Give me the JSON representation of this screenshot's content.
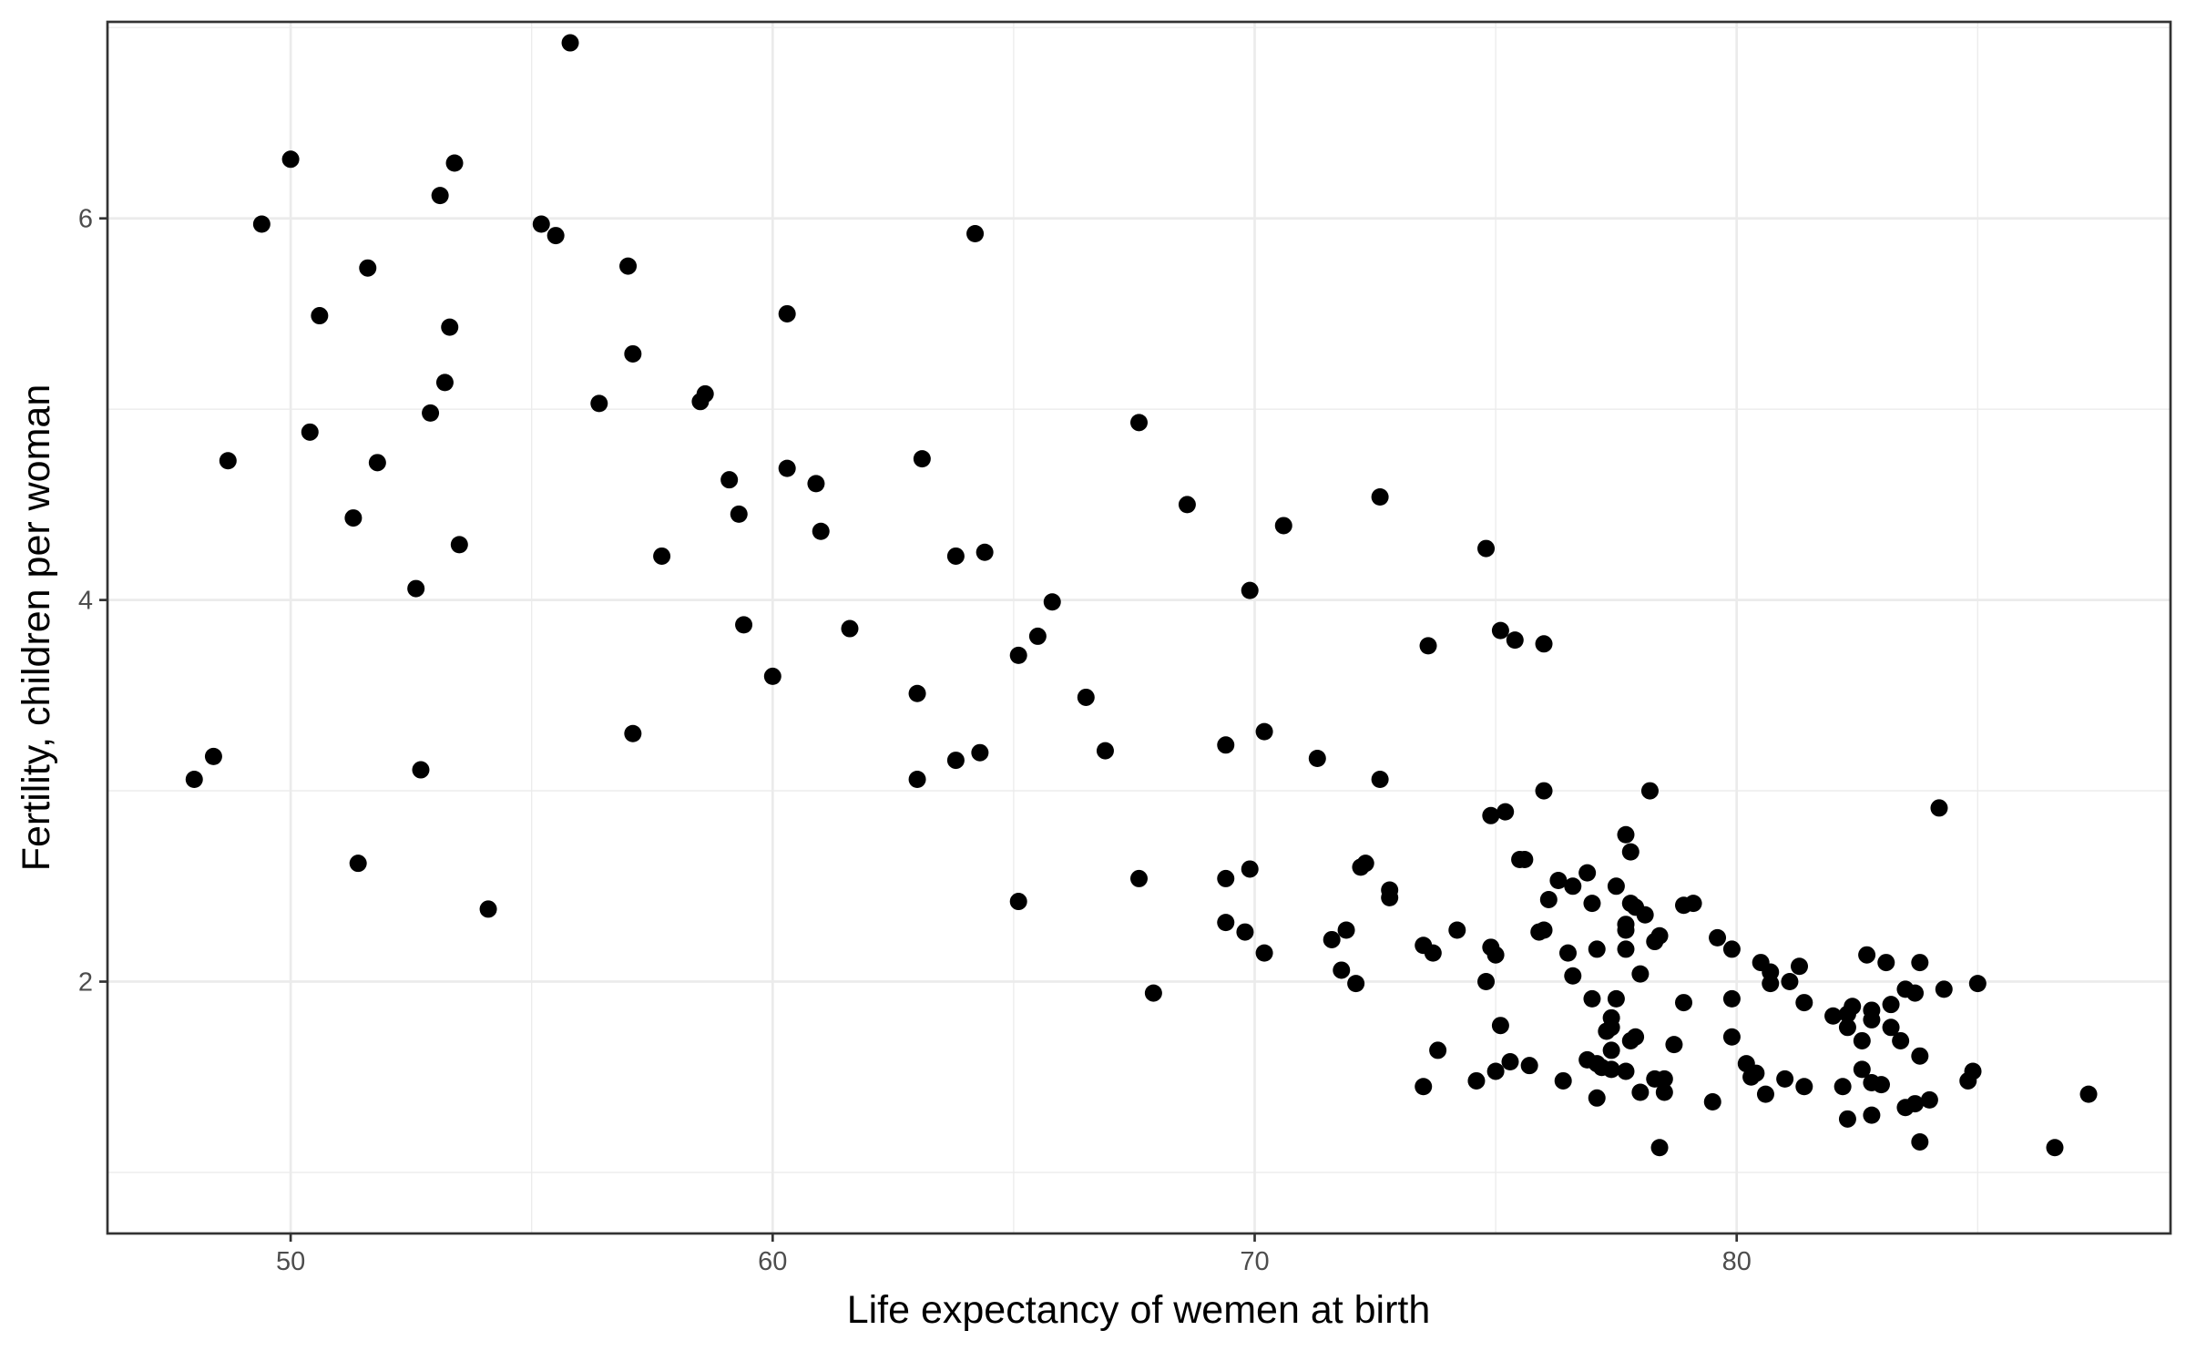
{
  "chart_data": {
    "type": "scatter",
    "title": "",
    "xlabel": "Life expectancy of wemen at birth",
    "ylabel": "Fertility, children per woman",
    "xlim": [
      46.2,
      89.0
    ],
    "ylim": [
      0.68,
      7.03
    ],
    "x_ticks": [
      50,
      60,
      70,
      80
    ],
    "y_ticks": [
      2,
      4,
      6
    ],
    "x_minor_ticks": [
      55,
      65,
      75,
      85
    ],
    "y_minor_ticks": [
      1,
      3,
      5,
      7
    ],
    "grid": true,
    "legend": "none",
    "point_color": "#000000",
    "points": [
      [
        55.8,
        6.92
      ],
      [
        50.0,
        6.31
      ],
      [
        53.4,
        6.29
      ],
      [
        53.1,
        6.12
      ],
      [
        49.4,
        5.97
      ],
      [
        55.2,
        5.97
      ],
      [
        55.5,
        5.91
      ],
      [
        64.2,
        5.92
      ],
      [
        51.6,
        5.74
      ],
      [
        57.0,
        5.75
      ],
      [
        50.6,
        5.49
      ],
      [
        60.3,
        5.5
      ],
      [
        53.3,
        5.43
      ],
      [
        57.1,
        5.29
      ],
      [
        53.2,
        5.14
      ],
      [
        58.6,
        5.08
      ],
      [
        58.5,
        5.04
      ],
      [
        56.4,
        5.03
      ],
      [
        52.9,
        4.98
      ],
      [
        67.6,
        4.93
      ],
      [
        50.4,
        4.88
      ],
      [
        48.7,
        4.73
      ],
      [
        51.8,
        4.72
      ],
      [
        63.1,
        4.74
      ],
      [
        60.3,
        4.69
      ],
      [
        59.1,
        4.63
      ],
      [
        60.9,
        4.61
      ],
      [
        72.6,
        4.54
      ],
      [
        68.6,
        4.5
      ],
      [
        51.3,
        4.43
      ],
      [
        59.3,
        4.45
      ],
      [
        70.6,
        4.39
      ],
      [
        61.0,
        4.36
      ],
      [
        53.5,
        4.29
      ],
      [
        74.8,
        4.27
      ],
      [
        57.7,
        4.23
      ],
      [
        63.8,
        4.23
      ],
      [
        64.4,
        4.25
      ],
      [
        52.6,
        4.06
      ],
      [
        69.9,
        4.05
      ],
      [
        65.8,
        3.99
      ],
      [
        59.4,
        3.87
      ],
      [
        61.6,
        3.85
      ],
      [
        75.1,
        3.84
      ],
      [
        75.4,
        3.79
      ],
      [
        76.0,
        3.77
      ],
      [
        65.5,
        3.81
      ],
      [
        73.6,
        3.76
      ],
      [
        65.1,
        3.71
      ],
      [
        60.0,
        3.6
      ],
      [
        63.0,
        3.51
      ],
      [
        66.5,
        3.49
      ],
      [
        57.1,
        3.3
      ],
      [
        70.2,
        3.31
      ],
      [
        69.4,
        3.24
      ],
      [
        66.9,
        3.21
      ],
      [
        64.3,
        3.2
      ],
      [
        48.4,
        3.18
      ],
      [
        63.8,
        3.16
      ],
      [
        71.3,
        3.17
      ],
      [
        52.7,
        3.11
      ],
      [
        48.0,
        3.06
      ],
      [
        63.0,
        3.06
      ],
      [
        72.6,
        3.06
      ],
      [
        76.0,
        3.0
      ],
      [
        78.2,
        3.0
      ],
      [
        84.2,
        2.91
      ],
      [
        75.2,
        2.89
      ],
      [
        74.9,
        2.87
      ],
      [
        77.7,
        2.77
      ],
      [
        77.8,
        2.68
      ],
      [
        75.6,
        2.64
      ],
      [
        75.5,
        2.64
      ],
      [
        51.4,
        2.62
      ],
      [
        72.3,
        2.62
      ],
      [
        72.2,
        2.6
      ],
      [
        69.9,
        2.59
      ],
      [
        76.9,
        2.57
      ],
      [
        76.3,
        2.53
      ],
      [
        67.6,
        2.54
      ],
      [
        69.4,
        2.54
      ],
      [
        76.6,
        2.5
      ],
      [
        77.5,
        2.5
      ],
      [
        72.8,
        2.48
      ],
      [
        72.8,
        2.44
      ],
      [
        76.1,
        2.43
      ],
      [
        65.1,
        2.42
      ],
      [
        77.0,
        2.41
      ],
      [
        77.8,
        2.41
      ],
      [
        79.1,
        2.41
      ],
      [
        78.9,
        2.4
      ],
      [
        77.9,
        2.39
      ],
      [
        54.1,
        2.38
      ],
      [
        78.1,
        2.35
      ],
      [
        77.7,
        2.3
      ],
      [
        77.7,
        2.27
      ],
      [
        69.4,
        2.31
      ],
      [
        71.9,
        2.27
      ],
      [
        69.8,
        2.26
      ],
      [
        74.2,
        2.27
      ],
      [
        76.0,
        2.27
      ],
      [
        75.9,
        2.26
      ],
      [
        71.6,
        2.22
      ],
      [
        79.6,
        2.23
      ],
      [
        78.4,
        2.24
      ],
      [
        78.3,
        2.21
      ],
      [
        73.5,
        2.19
      ],
      [
        74.9,
        2.18
      ],
      [
        79.9,
        2.17
      ],
      [
        77.7,
        2.17
      ],
      [
        77.1,
        2.17
      ],
      [
        70.2,
        2.15
      ],
      [
        73.7,
        2.15
      ],
      [
        75.0,
        2.14
      ],
      [
        76.5,
        2.15
      ],
      [
        82.7,
        2.14
      ],
      [
        83.1,
        2.1
      ],
      [
        83.8,
        2.1
      ],
      [
        80.5,
        2.1
      ],
      [
        81.3,
        2.08
      ],
      [
        71.8,
        2.06
      ],
      [
        80.7,
        2.05
      ],
      [
        78.0,
        2.04
      ],
      [
        76.6,
        2.03
      ],
      [
        74.8,
        2.0
      ],
      [
        72.1,
        1.99
      ],
      [
        80.7,
        1.99
      ],
      [
        81.1,
        2.0
      ],
      [
        85.0,
        1.99
      ],
      [
        84.3,
        1.96
      ],
      [
        83.5,
        1.96
      ],
      [
        83.7,
        1.94
      ],
      [
        67.9,
        1.94
      ],
      [
        77.0,
        1.91
      ],
      [
        77.5,
        1.91
      ],
      [
        79.9,
        1.91
      ],
      [
        81.4,
        1.89
      ],
      [
        78.9,
        1.89
      ],
      [
        83.2,
        1.88
      ],
      [
        82.4,
        1.87
      ],
      [
        82.8,
        1.85
      ],
      [
        82.0,
        1.82
      ],
      [
        82.3,
        1.83
      ],
      [
        77.4,
        1.81
      ],
      [
        82.8,
        1.8
      ],
      [
        75.1,
        1.77
      ],
      [
        77.4,
        1.76
      ],
      [
        82.3,
        1.76
      ],
      [
        83.2,
        1.76
      ],
      [
        77.3,
        1.74
      ],
      [
        77.9,
        1.71
      ],
      [
        79.9,
        1.71
      ],
      [
        77.8,
        1.69
      ],
      [
        82.6,
        1.69
      ],
      [
        83.4,
        1.69
      ],
      [
        78.7,
        1.67
      ],
      [
        77.4,
        1.64
      ],
      [
        73.8,
        1.64
      ],
      [
        83.8,
        1.61
      ],
      [
        76.9,
        1.59
      ],
      [
        75.3,
        1.58
      ],
      [
        77.1,
        1.57
      ],
      [
        80.2,
        1.57
      ],
      [
        75.7,
        1.56
      ],
      [
        77.2,
        1.55
      ],
      [
        77.4,
        1.54
      ],
      [
        82.6,
        1.54
      ],
      [
        77.7,
        1.53
      ],
      [
        75.0,
        1.53
      ],
      [
        84.9,
        1.53
      ],
      [
        80.4,
        1.52
      ],
      [
        80.3,
        1.5
      ],
      [
        81.0,
        1.49
      ],
      [
        78.3,
        1.49
      ],
      [
        78.5,
        1.49
      ],
      [
        84.8,
        1.48
      ],
      [
        74.6,
        1.48
      ],
      [
        76.4,
        1.48
      ],
      [
        82.8,
        1.47
      ],
      [
        83.0,
        1.46
      ],
      [
        82.2,
        1.45
      ],
      [
        73.5,
        1.45
      ],
      [
        81.4,
        1.45
      ],
      [
        78.5,
        1.42
      ],
      [
        78.0,
        1.42
      ],
      [
        80.6,
        1.41
      ],
      [
        87.3,
        1.41
      ],
      [
        77.1,
        1.39
      ],
      [
        84.0,
        1.38
      ],
      [
        79.5,
        1.37
      ],
      [
        83.7,
        1.36
      ],
      [
        83.5,
        1.34
      ],
      [
        82.8,
        1.3
      ],
      [
        82.3,
        1.28
      ],
      [
        83.8,
        1.16
      ],
      [
        78.4,
        1.13
      ],
      [
        86.6,
        1.13
      ]
    ]
  }
}
